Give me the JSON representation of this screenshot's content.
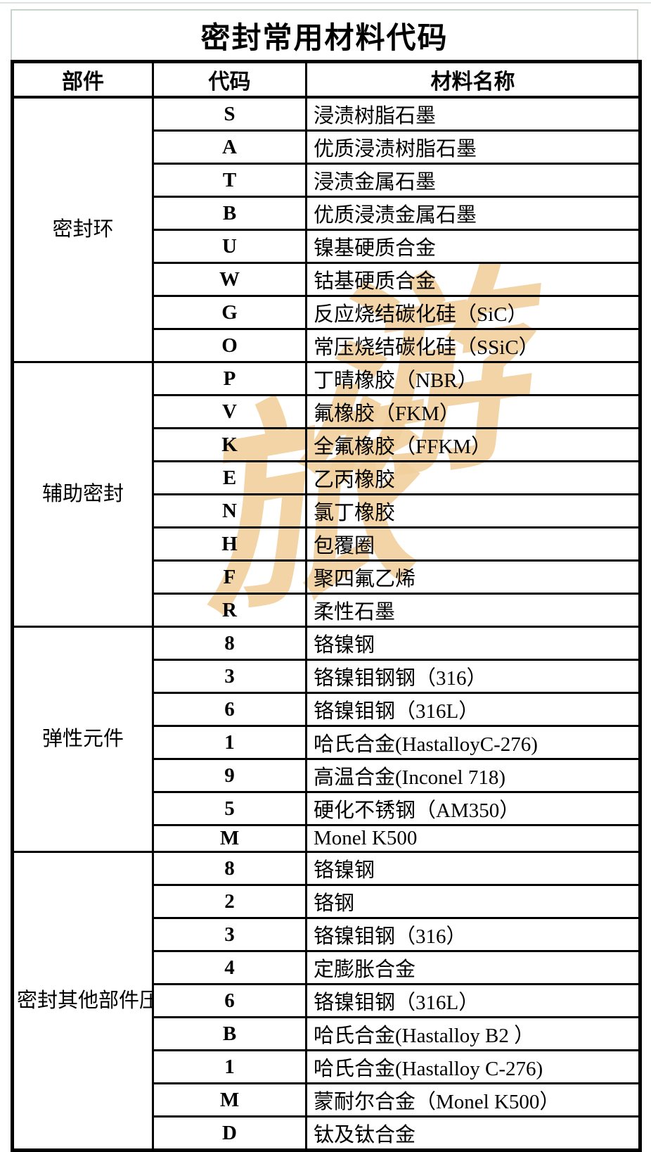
{
  "title": "密封常用材料代码",
  "columns": [
    "部件",
    "代码",
    "材料名称"
  ],
  "groups": [
    {
      "part": "密封环",
      "rows": [
        {
          "code": "S",
          "material": "浸渍树脂石墨"
        },
        {
          "code": "A",
          "material": "优质浸渍树脂石墨"
        },
        {
          "code": "T",
          "material": "浸渍金属石墨"
        },
        {
          "code": "B",
          "material": "优质浸渍金属石墨"
        },
        {
          "code": "U",
          "material": "镍基硬质合金"
        },
        {
          "code": "W",
          "material": "钴基硬质合金"
        },
        {
          "code": "G",
          "material": "反应烧结碳化硅（SiC）"
        },
        {
          "code": "O",
          "material": "常压烧结碳化硅（SSiC）"
        }
      ]
    },
    {
      "part": "辅助密封",
      "rows": [
        {
          "code": "P",
          "material": "丁晴橡胶（NBR）"
        },
        {
          "code": "V",
          "material": "氟橡胶（FKM）"
        },
        {
          "code": "K",
          "material": "全氟橡胶（FFKM）"
        },
        {
          "code": "E",
          "material": "乙丙橡胶"
        },
        {
          "code": "N",
          "material": "氯丁橡胶"
        },
        {
          "code": "H",
          "material": "包覆圈"
        },
        {
          "code": "F",
          "material": "聚四氟乙烯"
        },
        {
          "code": "R",
          "material": "柔性石墨"
        }
      ]
    },
    {
      "part": "弹性元件",
      "rows": [
        {
          "code": "8",
          "material": "铬镍钢"
        },
        {
          "code": "3",
          "material": "铬镍钼钢钢（316）"
        },
        {
          "code": "6",
          "material": "铬镍钼钢（316L）"
        },
        {
          "code": "1",
          "material": "哈氏合金(HastalloyC-276)"
        },
        {
          "code": "9",
          "material": "高温合金(Inconel 718)"
        },
        {
          "code": "5",
          "material": "硬化不锈钢（AM350）"
        },
        {
          "code": "M",
          "material": "Monel K500"
        }
      ]
    },
    {
      "part": "密封其他部件压盖和轴套",
      "rows": [
        {
          "code": "8",
          "material": "铬镍钢"
        },
        {
          "code": "2",
          "material": "铬钢"
        },
        {
          "code": "3",
          "material": "铬镍钼钢（316）"
        },
        {
          "code": "4",
          "material": "定膨胀合金"
        },
        {
          "code": "6",
          "material": "铬镍钼钢（316L）"
        },
        {
          "code": "B",
          "material": "哈氏合金(Hastalloy B2 ）"
        },
        {
          "code": "1",
          "material": "哈氏合金(Hastalloy C-276)"
        },
        {
          "code": "M",
          "material": "蒙耐尔合金（Monel K500）"
        },
        {
          "code": "D",
          "material": "钛及钛合金"
        }
      ]
    }
  ],
  "watermark": {
    "chars": [
      "旅",
      "游"
    ],
    "color": "#f2d09e"
  },
  "colors": {
    "grid_border": "#000000",
    "title_border": "#c8d5c8",
    "background": "#ffffff",
    "watermark": "#f2d09e"
  }
}
